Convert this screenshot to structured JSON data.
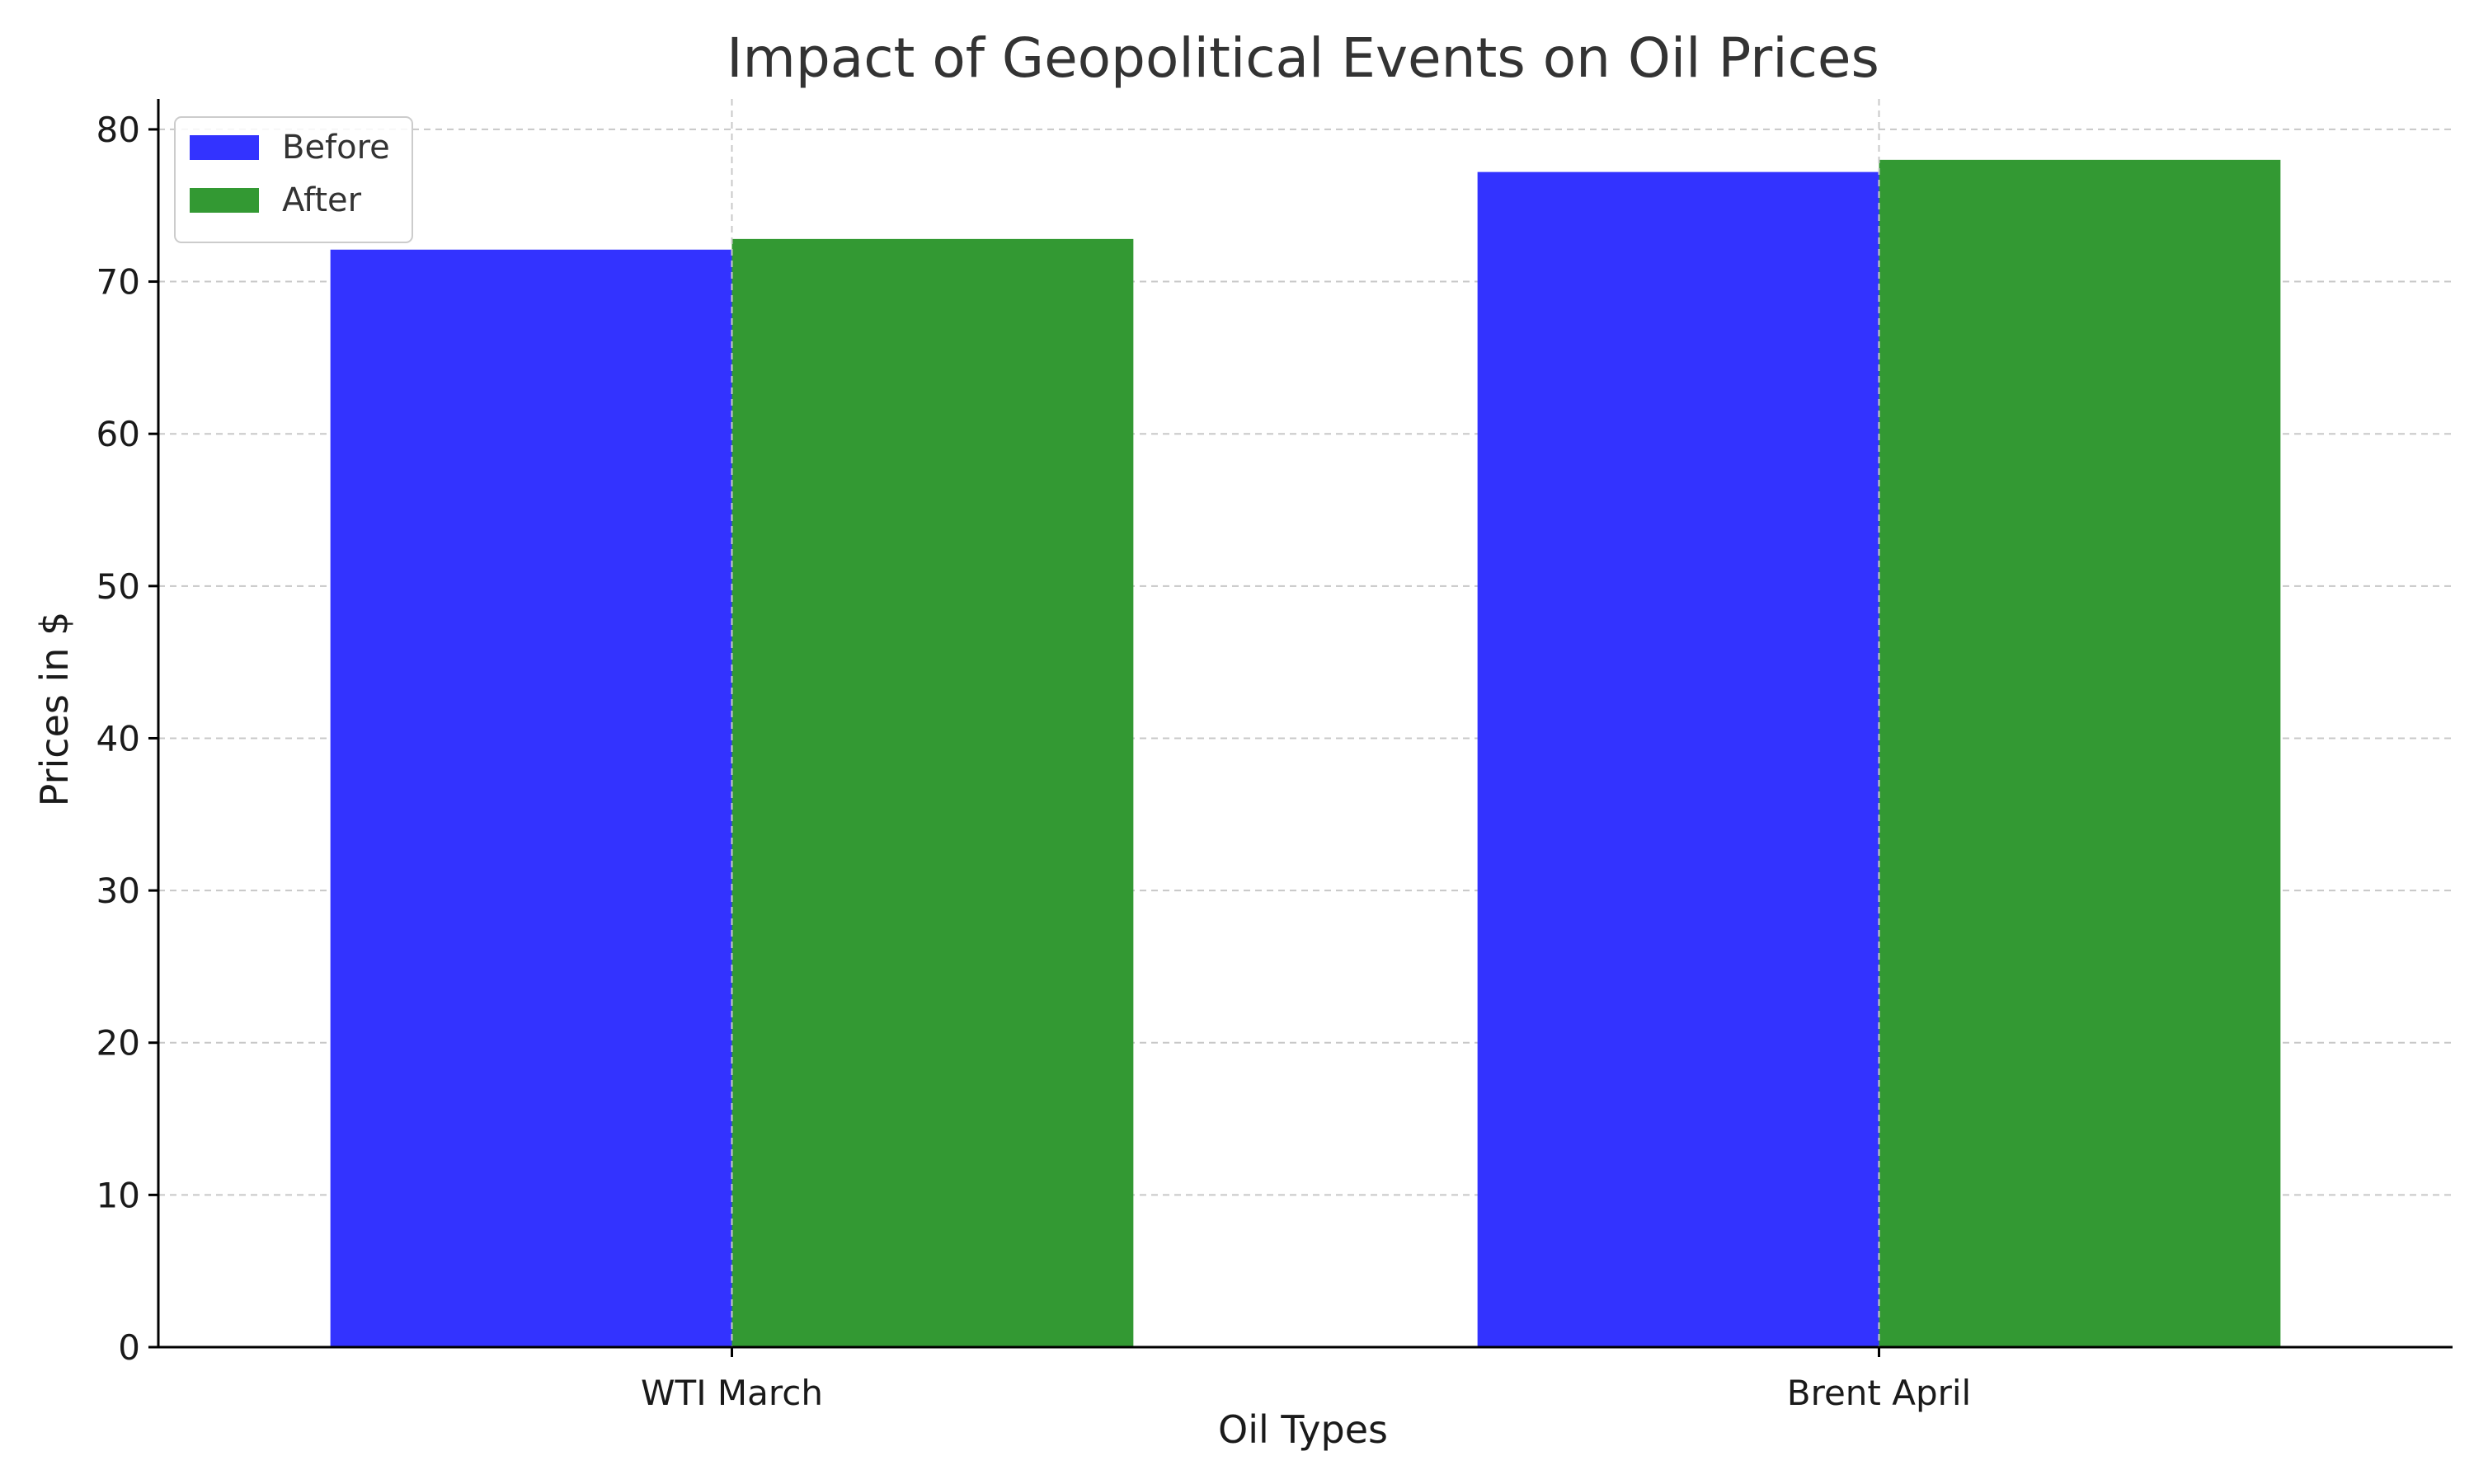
{
  "chart_data": {
    "type": "bar",
    "title": "Impact of Geopolitical Events on Oil Prices",
    "xlabel": "Oil Types",
    "ylabel": "Prices in $",
    "categories": [
      "WTI March",
      "Brent April"
    ],
    "series": [
      {
        "name": "Before",
        "values": [
          72.1,
          77.2
        ],
        "color": "#3333ff"
      },
      {
        "name": "After",
        "values": [
          72.8,
          78.0
        ],
        "color": "#339933"
      }
    ],
    "ylim": [
      0,
      82
    ],
    "yticks": [
      0,
      10,
      20,
      30,
      40,
      50,
      60,
      70,
      80
    ],
    "grid": true,
    "legend_position": "top-left"
  }
}
